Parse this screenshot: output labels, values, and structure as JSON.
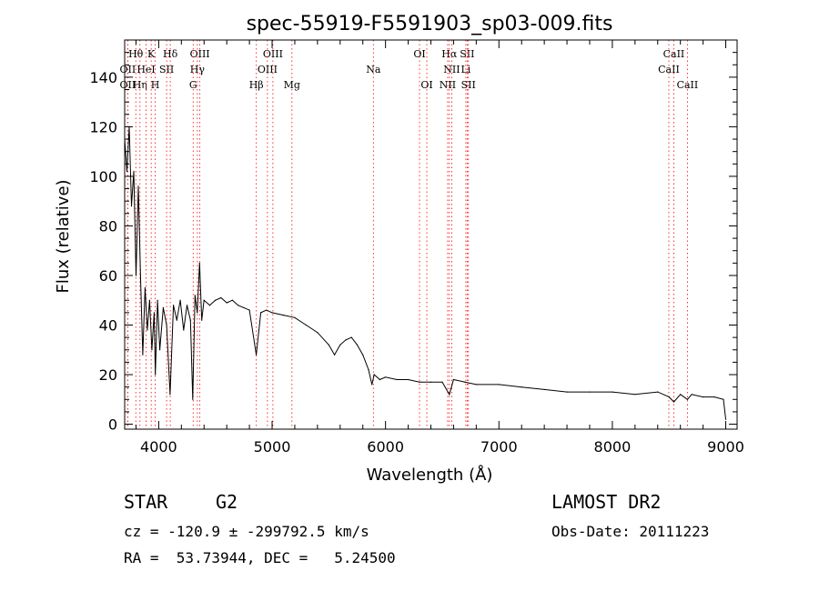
{
  "chart_data": {
    "type": "line",
    "title": "spec-55919-F5591903_sp03-009.fits",
    "xlabel": "Wavelength (Å)",
    "ylabel": "Flux (relative)",
    "xlim": [
      3700,
      9100
    ],
    "ylim": [
      -2,
      155
    ],
    "xticks": [
      4000,
      5000,
      6000,
      7000,
      8000,
      9000
    ],
    "yticks": [
      0,
      20,
      40,
      60,
      80,
      100,
      120,
      140
    ],
    "grid": false,
    "series": [
      {
        "name": "spectrum",
        "x": [
          3700,
          3720,
          3740,
          3760,
          3780,
          3800,
          3820,
          3840,
          3860,
          3880,
          3900,
          3920,
          3940,
          3960,
          3970,
          3990,
          4010,
          4040,
          4070,
          4100,
          4130,
          4160,
          4190,
          4220,
          4250,
          4280,
          4300,
          4320,
          4340,
          4360,
          4380,
          4400,
          4450,
          4500,
          4550,
          4600,
          4650,
          4700,
          4750,
          4800,
          4860,
          4900,
          4950,
          5000,
          5100,
          5200,
          5300,
          5400,
          5500,
          5550,
          5600,
          5650,
          5700,
          5750,
          5800,
          5850,
          5880,
          5900,
          5950,
          6000,
          6100,
          6200,
          6300,
          6400,
          6500,
          6563,
          6600,
          6700,
          6800,
          7000,
          7200,
          7400,
          7600,
          7800,
          8000,
          8200,
          8400,
          8500,
          8542,
          8600,
          8662,
          8700,
          8800,
          8900,
          8980,
          9000
        ],
        "y": [
          115,
          102,
          120,
          88,
          102,
          60,
          96,
          60,
          28,
          55,
          38,
          50,
          30,
          45,
          20,
          50,
          30,
          47,
          40,
          12,
          48,
          42,
          50,
          38,
          48,
          42,
          10,
          52,
          45,
          65,
          42,
          50,
          48,
          50,
          51,
          49,
          50,
          48,
          47,
          46,
          28,
          45,
          46,
          45,
          44,
          43,
          40,
          37,
          32,
          28,
          32,
          34,
          35,
          32,
          28,
          22,
          16,
          20,
          18,
          19,
          18,
          18,
          17,
          17,
          17,
          12,
          18,
          17,
          16,
          16,
          15,
          14,
          13,
          13,
          13,
          12,
          13,
          11,
          9,
          12,
          10,
          12,
          11,
          11,
          10,
          2
        ]
      }
    ],
    "lines": [
      {
        "label": "OII",
        "wl": 3727,
        "row": 1
      },
      {
        "label": "OII",
        "wl": 3727,
        "row": 2
      },
      {
        "label": "Hθ",
        "wl": 3798,
        "row": 0
      },
      {
        "label": "Hη",
        "wl": 3835,
        "row": 2
      },
      {
        "label": "HeI",
        "wl": 3889,
        "row": 1
      },
      {
        "label": "K",
        "wl": 3934,
        "row": 0
      },
      {
        "label": "H",
        "wl": 3969,
        "row": 2
      },
      {
        "label": "SII",
        "wl": 4070,
        "row": 1
      },
      {
        "label": "Hδ",
        "wl": 4102,
        "row": 0
      },
      {
        "label": "OIII",
        "wl": 4363,
        "row": 0
      },
      {
        "label": "Hγ",
        "wl": 4341,
        "row": 1
      },
      {
        "label": "G",
        "wl": 4304,
        "row": 2
      },
      {
        "label": "Hβ",
        "wl": 4861,
        "row": 2
      },
      {
        "label": "OIII",
        "wl": 5007,
        "row": 0
      },
      {
        "label": "OIII",
        "wl": 4959,
        "row": 1
      },
      {
        "label": "Mg",
        "wl": 5175,
        "row": 2
      },
      {
        "label": "Na",
        "wl": 5893,
        "row": 1
      },
      {
        "label": "OI",
        "wl": 6300,
        "row": 0
      },
      {
        "label": "OI",
        "wl": 6364,
        "row": 2
      },
      {
        "label": "Hα",
        "wl": 6563,
        "row": 0
      },
      {
        "label": "NII",
        "wl": 6584,
        "row": 1
      },
      {
        "label": "NII",
        "wl": 6548,
        "row": 2
      },
      {
        "label": "SII",
        "wl": 6720,
        "row": 0
      },
      {
        "label": "Li",
        "wl": 6708,
        "row": 1
      },
      {
        "label": "SII",
        "wl": 6731,
        "row": 2
      },
      {
        "label": "CaII",
        "wl": 8542,
        "row": 0
      },
      {
        "label": "CaII",
        "wl": 8498,
        "row": 1
      },
      {
        "label": "CaII",
        "wl": 8662,
        "row": 2
      }
    ]
  },
  "info": {
    "object_class": "STAR",
    "subclass": "G2",
    "survey": "LAMOST DR2",
    "cz_line": "cz = -120.9 ± -299792.5 km/s",
    "obs_date": "Obs-Date: 20111223",
    "radec_line": "RA =  53.73944, DEC =   5.24500"
  },
  "colors": {
    "axis": "#000000",
    "spectrum": "#000000",
    "line_marker": "#ff0000"
  }
}
